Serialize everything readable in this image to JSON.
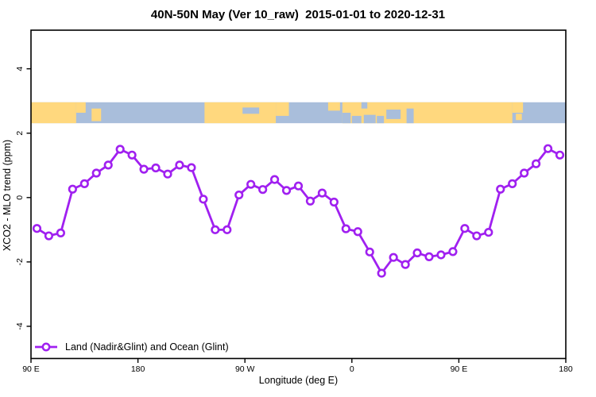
{
  "figure": {
    "title": "40N-50N May (Ver 10_raw)  2015-01-01 to 2020-12-31",
    "xlabel": "Longitude (deg E)",
    "ylabel": "XCO2 - MLO trend (ppm)",
    "legend_label": "Land (Nadir&Glint) and Ocean (Glint)"
  },
  "colors": {
    "series": "#A020F0",
    "marker_fill": "#ffffff",
    "land": "#FFD87E",
    "ocean": "#A9BEDB",
    "axis": "#000000",
    "background": "#ffffff"
  },
  "chart_data": {
    "type": "line",
    "title": "40N-50N May (Ver 10_raw)  2015-01-01 to 2020-12-31",
    "xlabel": "Longitude (deg E)",
    "ylabel": "XCO2 - MLO trend (ppm)",
    "legend": {
      "position": "bottom-left",
      "entries": [
        "Land (Nadir&Glint) and Ocean (Glint)"
      ]
    },
    "grid": false,
    "xlim": [
      90,
      540
    ],
    "ylim": [
      -5.0,
      5.2
    ],
    "x_ticks": [
      {
        "pos": 90,
        "label": "90 E"
      },
      {
        "pos": 180,
        "label": "180"
      },
      {
        "pos": 270,
        "label": "90 W"
      },
      {
        "pos": 360,
        "label": "0"
      },
      {
        "pos": 450,
        "label": "90 E"
      },
      {
        "pos": 540,
        "label": "180"
      }
    ],
    "y_ticks": [
      {
        "pos": -4,
        "label": "-4"
      },
      {
        "pos": -2,
        "label": "-2"
      },
      {
        "pos": 0,
        "label": "0"
      },
      {
        "pos": 2,
        "label": "2"
      },
      {
        "pos": 4,
        "label": "4"
      }
    ],
    "series": [
      {
        "name": "Land (Nadir&Glint) and Ocean (Glint)",
        "marker": "open-circle",
        "x_wrapped_deg": [
          95,
          105,
          115,
          125,
          135,
          145,
          155,
          165,
          175,
          185,
          195,
          205,
          215,
          225,
          235,
          245,
          255,
          265,
          275,
          285,
          295,
          305,
          315,
          325,
          335,
          345,
          355,
          365,
          375,
          385,
          395,
          405,
          415,
          425,
          435,
          445,
          455,
          465,
          475,
          485,
          495,
          505,
          515,
          525,
          535
        ],
        "values": [
          -0.96,
          -1.19,
          -1.1,
          0.26,
          0.43,
          0.76,
          1.01,
          1.5,
          1.32,
          0.88,
          0.92,
          0.73,
          1.01,
          0.93,
          -0.05,
          -1.0,
          -1.0,
          0.08,
          0.41,
          0.25,
          0.56,
          0.22,
          0.36,
          -0.11,
          0.14,
          -0.14,
          -0.97,
          -1.06,
          -1.69,
          -2.35,
          -1.86,
          -2.08,
          -1.72,
          -1.84,
          -1.78,
          -1.68,
          -0.96,
          -1.19,
          -1.08,
          0.26,
          0.43,
          0.76,
          1.05,
          1.52,
          1.32
        ]
      }
    ],
    "map_strip": {
      "description": "world land/ocean band across 40N-50N drawn above y=2",
      "band_y": [
        2.31,
        2.96
      ],
      "base": "ocean",
      "segments": [
        [
          "land",
          90,
          128,
          0,
          1
        ],
        [
          "land",
          128,
          136,
          0,
          0.5
        ],
        [
          "land",
          141,
          149,
          0.3,
          0.9
        ],
        [
          "land",
          236,
          296,
          0,
          1
        ],
        [
          "sea",
          268,
          282,
          0.25,
          0.55
        ],
        [
          "land",
          296,
          307,
          0,
          0.65
        ],
        [
          "land",
          340,
          350,
          0,
          0.4
        ],
        [
          "land",
          352,
          495,
          0,
          1
        ],
        [
          "sea",
          352,
          359,
          0.5,
          1
        ],
        [
          "sea",
          360,
          368,
          0.65,
          1
        ],
        [
          "sea",
          368,
          373,
          0,
          0.3
        ],
        [
          "sea",
          370,
          380,
          0.6,
          1
        ],
        [
          "sea",
          381,
          387,
          0.65,
          1
        ],
        [
          "sea",
          389,
          401,
          0.35,
          0.8
        ],
        [
          "sea",
          406,
          412,
          0.3,
          1
        ],
        [
          "land",
          495,
          504,
          0,
          0.5
        ],
        [
          "land",
          498,
          503,
          0.55,
          0.85
        ]
      ]
    }
  }
}
